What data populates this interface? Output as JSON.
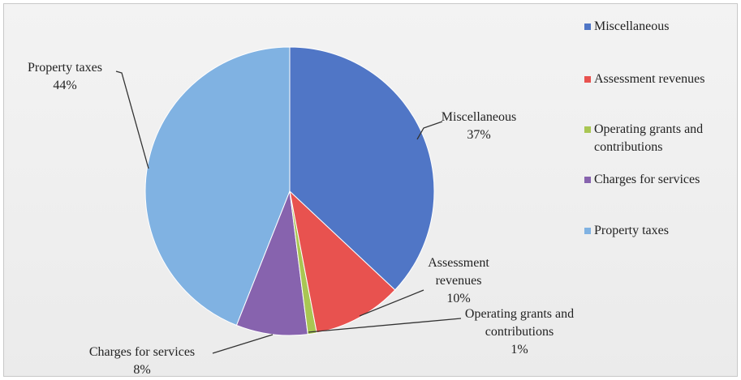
{
  "chart_data": {
    "type": "pie",
    "categories": [
      "Miscellaneous",
      "Assessment revenues",
      "Operating grants and contributions",
      "Charges for services",
      "Property taxes"
    ],
    "values": [
      37,
      10,
      1,
      8,
      44
    ],
    "value_labels": [
      "37%",
      "10%",
      "1%",
      "8%",
      "44%"
    ],
    "colors": [
      "#5076c6",
      "#e8524f",
      "#a9c653",
      "#8763ae",
      "#80b2e2"
    ],
    "legend": "right"
  }
}
